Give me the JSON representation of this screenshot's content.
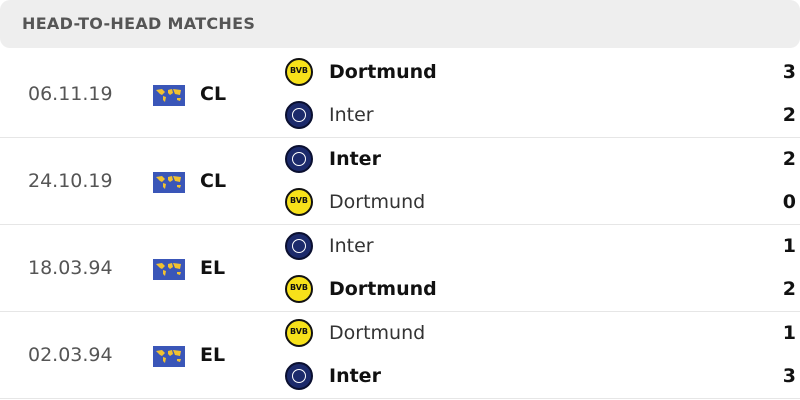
{
  "header": {
    "title": "HEAD-TO-HEAD MATCHES"
  },
  "matches": [
    {
      "date": "06.11.19",
      "competition": "CL",
      "teams": [
        {
          "name": "Dortmund",
          "logo": "bvb-logo",
          "score": "3",
          "winner": true
        },
        {
          "name": "Inter",
          "logo": "inter-logo",
          "score": "2",
          "winner": false
        }
      ]
    },
    {
      "date": "24.10.19",
      "competition": "CL",
      "teams": [
        {
          "name": "Inter",
          "logo": "inter-logo",
          "score": "2",
          "winner": true
        },
        {
          "name": "Dortmund",
          "logo": "bvb-logo",
          "score": "0",
          "winner": false
        }
      ]
    },
    {
      "date": "18.03.94",
      "competition": "EL",
      "teams": [
        {
          "name": "Inter",
          "logo": "inter-logo",
          "score": "1",
          "winner": false
        },
        {
          "name": "Dortmund",
          "logo": "bvb-logo",
          "score": "2",
          "winner": true
        }
      ]
    },
    {
      "date": "02.03.94",
      "competition": "EL",
      "teams": [
        {
          "name": "Dortmund",
          "logo": "bvb-logo",
          "score": "1",
          "winner": false
        },
        {
          "name": "Inter",
          "logo": "inter-logo",
          "score": "3",
          "winner": true
        }
      ]
    }
  ],
  "colors": {
    "header_bg": "#eeeeee",
    "flag": "#3a56b8",
    "bvb": "#f7e11a",
    "inter": "#1c2a6b"
  }
}
